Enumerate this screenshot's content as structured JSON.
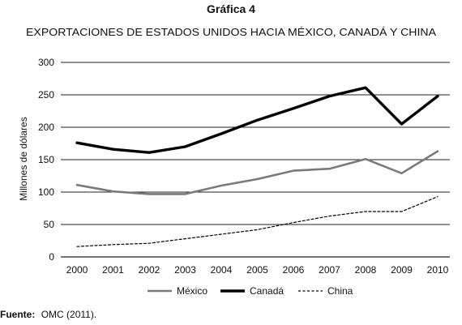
{
  "figure": {
    "label": "Gráfica 4",
    "source_label": "Fuente:",
    "source_text": "OMC (2011)."
  },
  "chart_data": {
    "type": "line",
    "title": "EXPORTACIONES DE ESTADOS UNIDOS HACIA MÉXICO, CANADÁ Y CHINA",
    "ylabel": "Millones de dólares",
    "xlabel": "",
    "x": [
      "2000",
      "2001",
      "2002",
      "2003",
      "2004",
      "2005",
      "2006",
      "2007",
      "2008",
      "2009",
      "2010"
    ],
    "ylim": [
      0,
      300
    ],
    "yticks": [
      0,
      50,
      100,
      150,
      200,
      250,
      300
    ],
    "grid": "horizontal",
    "legend_position": "bottom",
    "series": [
      {
        "name": "México",
        "color": "#7a7a7a",
        "style": "solid",
        "values": [
          111,
          101,
          97,
          97,
          110,
          120,
          133,
          136,
          151,
          129,
          163
        ]
      },
      {
        "name": "Canadá",
        "color": "#000000",
        "style": "solid-thick",
        "values": [
          176,
          166,
          161,
          170,
          190,
          211,
          229,
          248,
          261,
          205,
          248
        ]
      },
      {
        "name": "China",
        "color": "#000000",
        "style": "dashed",
        "values": [
          16,
          19,
          21,
          28,
          35,
          42,
          53,
          63,
          70,
          70,
          93
        ]
      }
    ]
  }
}
